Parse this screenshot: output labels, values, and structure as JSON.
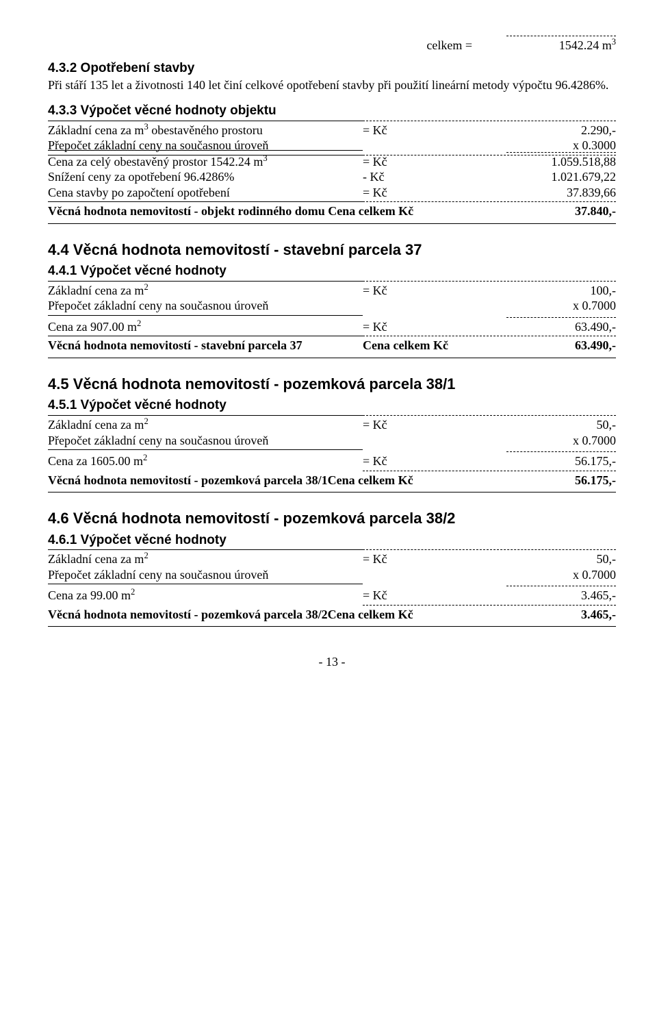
{
  "top": {
    "celkem_label": "celkem =",
    "celkem_val": "1542.24 m³"
  },
  "s432": {
    "heading": "4.3.2 Opotřebení stavby",
    "body": "Při stáří 135 let a životnosti 140 let činí celkové opotřebení stavby při použití lineární metody výpočtu 96.4286%."
  },
  "s433": {
    "heading": "4.3.3 Výpočet věcné hodnoty objektu",
    "r1_label": "Základní cena za m³ obestavěného prostoru",
    "r1_op": "= Kč",
    "r1_val": "2.290,-",
    "r2_label": "Přepočet základní ceny na současnou úroveň",
    "r2_val": "x 0.3000",
    "r3_label": "Cena za celý obestavěný prostor 1542.24 m³",
    "r3_op": "= Kč",
    "r3_val": "1.059.518,88",
    "r4_label": "Snížení ceny za opotřebení 96.4286%",
    "r4_op": "- Kč",
    "r4_val": "1.021.679,22",
    "r5_label": "Cena stavby po započtení opotřebení",
    "r5_op": "= Kč",
    "r5_val": "37.839,66",
    "sum_label": "Věcná hodnota nemovitostí - objekt rodinného domu Cena celkem Kč",
    "sum_val": "37.840,-"
  },
  "s44": {
    "heading": "4.4 Věcná hodnota nemovitostí - stavební parcela 37",
    "sub": "4.4.1 Výpočet věcné hodnoty",
    "r1_label": "Základní cena za m²",
    "r1_op": "= Kč",
    "r1_val": "100,-",
    "r2_label": "Přepočet základní ceny na současnou úroveň",
    "r2_val": "x 0.7000",
    "r3_label": "Cena za 907.00 m²",
    "r3_op": "= Kč",
    "r3_val": "63.490,-",
    "sum_label": "Věcná hodnota nemovitostí - stavební parcela 37",
    "sum_op": "Cena celkem Kč",
    "sum_val": "63.490,-"
  },
  "s45": {
    "heading": "4.5 Věcná hodnota nemovitostí - pozemková parcela 38/1",
    "sub": "4.5.1 Výpočet věcné hodnoty",
    "r1_label": "Základní cena za m²",
    "r1_op": "= Kč",
    "r1_val": "50,-",
    "r2_label": "Přepočet základní ceny na současnou úroveň",
    "r2_val": "x 0.7000",
    "r3_label": "Cena za 1605.00 m²",
    "r3_op": "= Kč",
    "r3_val": "56.175,-",
    "sum_label": "Věcná hodnota nemovitostí - pozemková parcela 38/1Cena celkem Kč",
    "sum_val": "56.175,-"
  },
  "s46": {
    "heading": "4.6 Věcná hodnota nemovitostí - pozemková parcela 38/2",
    "sub": "4.6.1 Výpočet věcné hodnoty",
    "r1_label": "Základní cena za m²",
    "r1_op": "= Kč",
    "r1_val": "50,-",
    "r2_label": "Přepočet základní ceny na současnou úroveň",
    "r2_val": "x 0.7000",
    "r3_label": "Cena za 99.00 m²",
    "r3_op": "= Kč",
    "r3_val": "3.465,-",
    "sum_label": "Věcná hodnota nemovitostí - pozemková parcela 38/2Cena celkem Kč",
    "sum_val": "3.465,-"
  },
  "page": "- 13 -"
}
